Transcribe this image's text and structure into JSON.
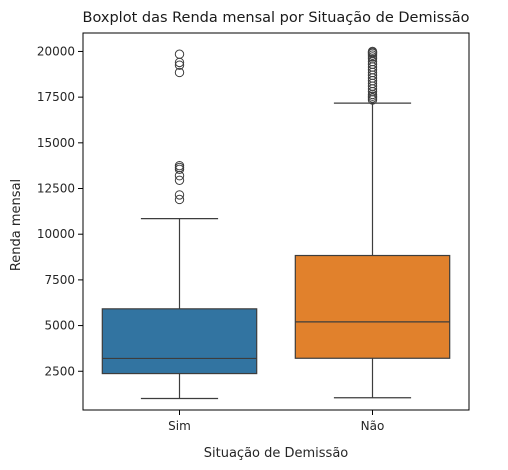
{
  "chart_data": {
    "type": "boxplot",
    "title": "Boxplot das Renda mensal por Situação de Demissão",
    "xlabel": "Situação de Demissão",
    "ylabel": "Renda mensal",
    "categories": [
      "Sim",
      "Não"
    ],
    "y_ticks": [
      2500,
      5000,
      7500,
      10000,
      12500,
      15000,
      17500,
      20000
    ],
    "y_tick_labels": [
      "2500",
      "5000",
      "7500",
      "10000",
      "12500",
      "15000",
      "17500",
      "20000"
    ],
    "ylim": [
      380,
      21010
    ],
    "grid": false,
    "legend": "none",
    "colors": {
      "Sim": "#3274a1",
      "Não": "#e1812c",
      "line": "#3d3d3d",
      "frame": "#000000"
    },
    "series": [
      {
        "category": "Sim",
        "whisker_low": 1009,
        "q1": 2373,
        "median": 3202,
        "q3": 5916,
        "whisker_high": 10854,
        "outliers": [
          11900,
          12150,
          12950,
          13200,
          13550,
          13650,
          13750,
          18850,
          19250,
          19400,
          19850
        ]
      },
      {
        "category": "Não",
        "whisker_low": 1051,
        "q1": 3211,
        "median": 5204,
        "q3": 8834,
        "whisker_high": 17174,
        "outliers": [
          17350,
          17450,
          17550,
          17650,
          17800,
          17950,
          18100,
          18250,
          18400,
          18550,
          18700,
          18850,
          19000,
          19150,
          19300,
          19450,
          19600,
          19700,
          19800,
          19900,
          19950,
          20000
        ]
      }
    ]
  }
}
